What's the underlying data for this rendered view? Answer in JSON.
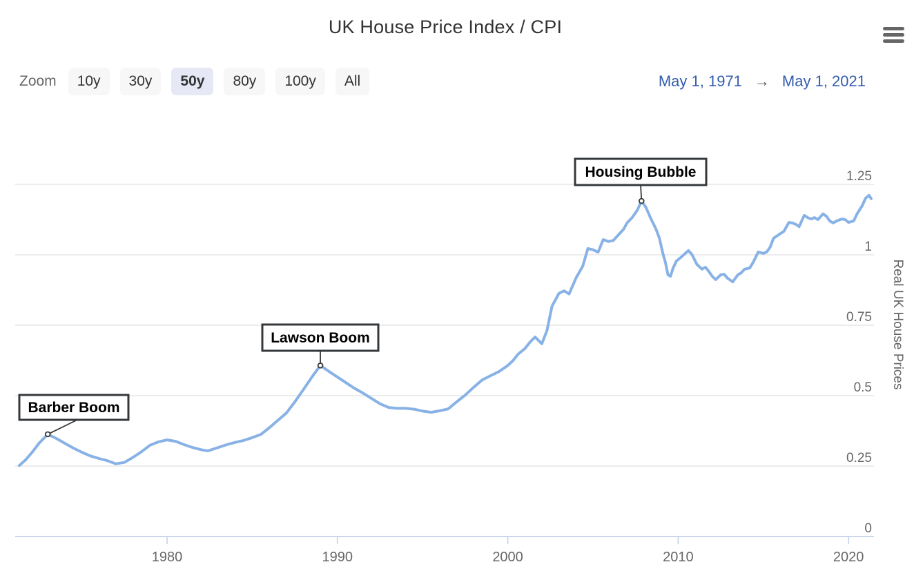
{
  "header": {
    "title": "UK House Price Index / CPI",
    "menu_icon": "hamburger-menu-icon"
  },
  "range_selector": {
    "zoom_label": "Zoom",
    "buttons": [
      {
        "label": "10y",
        "selected": false
      },
      {
        "label": "30y",
        "selected": false
      },
      {
        "label": "50y",
        "selected": true
      },
      {
        "label": "80y",
        "selected": false
      },
      {
        "label": "100y",
        "selected": false
      },
      {
        "label": "All",
        "selected": false
      }
    ],
    "date_from": "May 1, 1971",
    "arrow": "→",
    "date_to": "May 1, 2021"
  },
  "colors": {
    "series_line": "#88b2e6",
    "gridline": "#e6e6e6",
    "axis_line": "#ccd6eb",
    "axis_label": "#666666",
    "title_text": "#333333",
    "date_text": "#335cad",
    "button_bg": "#f7f7f7",
    "button_selected_bg": "#e6e9f5",
    "annotation_border": "#35383b",
    "annotation_text": "#000000",
    "annotation_fill": "#ffffff"
  },
  "chart_data": {
    "type": "line",
    "title": "UK House Price Index / CPI",
    "xlabel": "",
    "ylabel": "Real UK House Prices",
    "xlim": [
      1971.33,
      2021.33
    ],
    "ylim": [
      0,
      1.25
    ],
    "xticks": [
      1980,
      1990,
      2000,
      2010,
      2020
    ],
    "yticks": [
      0,
      0.25,
      0.5,
      0.75,
      1,
      1.25
    ],
    "ytick_labels": [
      "0",
      "0.25",
      "0.5",
      "0.75",
      "1",
      "1.25"
    ],
    "grid": true,
    "legend": false,
    "y_axis_position": "right",
    "annotations": [
      {
        "label": "Barber Boom",
        "year": 1973.0,
        "value": 0.363
      },
      {
        "label": "Lawson Boom",
        "year": 1989.0,
        "value": 0.607
      },
      {
        "label": "Housing Bubble",
        "year": 2007.85,
        "value": 1.191
      }
    ],
    "series": [
      {
        "name": "Real UK House Prices",
        "color": "#88b2e6",
        "points": [
          [
            1971.33,
            0.252
          ],
          [
            1971.7,
            0.272
          ],
          [
            1972.1,
            0.3
          ],
          [
            1972.5,
            0.332
          ],
          [
            1973.0,
            0.363
          ],
          [
            1973.5,
            0.348
          ],
          [
            1974.0,
            0.331
          ],
          [
            1974.5,
            0.314
          ],
          [
            1975.0,
            0.299
          ],
          [
            1975.5,
            0.286
          ],
          [
            1976.0,
            0.277
          ],
          [
            1976.5,
            0.269
          ],
          [
            1977.0,
            0.258
          ],
          [
            1977.5,
            0.263
          ],
          [
            1978.0,
            0.281
          ],
          [
            1978.5,
            0.301
          ],
          [
            1979.0,
            0.324
          ],
          [
            1979.5,
            0.336
          ],
          [
            1980.0,
            0.343
          ],
          [
            1980.5,
            0.338
          ],
          [
            1981.0,
            0.326
          ],
          [
            1981.5,
            0.316
          ],
          [
            1982.0,
            0.308
          ],
          [
            1982.4,
            0.304
          ],
          [
            1983.0,
            0.316
          ],
          [
            1983.5,
            0.326
          ],
          [
            1984.0,
            0.334
          ],
          [
            1984.5,
            0.341
          ],
          [
            1985.0,
            0.351
          ],
          [
            1985.5,
            0.362
          ],
          [
            1986.0,
            0.386
          ],
          [
            1986.5,
            0.412
          ],
          [
            1987.0,
            0.438
          ],
          [
            1987.5,
            0.478
          ],
          [
            1988.0,
            0.521
          ],
          [
            1988.5,
            0.566
          ],
          [
            1989.0,
            0.607
          ],
          [
            1989.5,
            0.586
          ],
          [
            1990.0,
            0.566
          ],
          [
            1990.5,
            0.546
          ],
          [
            1991.0,
            0.526
          ],
          [
            1991.5,
            0.509
          ],
          [
            1992.0,
            0.49
          ],
          [
            1992.5,
            0.471
          ],
          [
            1993.0,
            0.458
          ],
          [
            1993.5,
            0.455
          ],
          [
            1994.0,
            0.455
          ],
          [
            1994.5,
            0.452
          ],
          [
            1995.0,
            0.445
          ],
          [
            1995.5,
            0.441
          ],
          [
            1996.0,
            0.446
          ],
          [
            1996.5,
            0.453
          ],
          [
            1997.0,
            0.478
          ],
          [
            1997.5,
            0.502
          ],
          [
            1998.0,
            0.53
          ],
          [
            1998.5,
            0.556
          ],
          [
            1999.0,
            0.571
          ],
          [
            1999.5,
            0.586
          ],
          [
            2000.0,
            0.607
          ],
          [
            2000.3,
            0.624
          ],
          [
            2000.6,
            0.647
          ],
          [
            2001.0,
            0.667
          ],
          [
            2001.3,
            0.69
          ],
          [
            2001.6,
            0.708
          ],
          [
            2002.0,
            0.684
          ],
          [
            2002.3,
            0.731
          ],
          [
            2002.6,
            0.818
          ],
          [
            2003.0,
            0.863
          ],
          [
            2003.3,
            0.872
          ],
          [
            2003.6,
            0.861
          ],
          [
            2004.0,
            0.917
          ],
          [
            2004.4,
            0.96
          ],
          [
            2004.7,
            1.022
          ],
          [
            2005.0,
            1.018
          ],
          [
            2005.3,
            1.009
          ],
          [
            2005.6,
            1.054
          ],
          [
            2005.9,
            1.047
          ],
          [
            2006.2,
            1.051
          ],
          [
            2006.5,
            1.071
          ],
          [
            2006.8,
            1.091
          ],
          [
            2007.0,
            1.113
          ],
          [
            2007.3,
            1.132
          ],
          [
            2007.6,
            1.158
          ],
          [
            2007.85,
            1.191
          ],
          [
            2008.1,
            1.169
          ],
          [
            2008.4,
            1.128
          ],
          [
            2008.7,
            1.091
          ],
          [
            2008.9,
            1.059
          ],
          [
            2009.1,
            1.005
          ],
          [
            2009.25,
            0.973
          ],
          [
            2009.4,
            0.929
          ],
          [
            2009.55,
            0.924
          ],
          [
            2009.7,
            0.953
          ],
          [
            2009.9,
            0.978
          ],
          [
            2010.2,
            0.993
          ],
          [
            2010.6,
            1.015
          ],
          [
            2010.8,
            1.002
          ],
          [
            2011.1,
            0.966
          ],
          [
            2011.4,
            0.949
          ],
          [
            2011.6,
            0.956
          ],
          [
            2011.8,
            0.941
          ],
          [
            2012.0,
            0.924
          ],
          [
            2012.2,
            0.912
          ],
          [
            2012.5,
            0.929
          ],
          [
            2012.7,
            0.931
          ],
          [
            2012.9,
            0.917
          ],
          [
            2013.2,
            0.904
          ],
          [
            2013.5,
            0.929
          ],
          [
            2013.7,
            0.936
          ],
          [
            2013.9,
            0.949
          ],
          [
            2014.2,
            0.953
          ],
          [
            2014.4,
            0.973
          ],
          [
            2014.7,
            1.01
          ],
          [
            2015.0,
            1.005
          ],
          [
            2015.2,
            1.01
          ],
          [
            2015.4,
            1.027
          ],
          [
            2015.6,
            1.059
          ],
          [
            2015.9,
            1.071
          ],
          [
            2016.2,
            1.083
          ],
          [
            2016.5,
            1.115
          ],
          [
            2016.7,
            1.113
          ],
          [
            2016.9,
            1.108
          ],
          [
            2017.1,
            1.1
          ],
          [
            2017.4,
            1.14
          ],
          [
            2017.6,
            1.132
          ],
          [
            2017.8,
            1.127
          ],
          [
            2018.0,
            1.132
          ],
          [
            2018.2,
            1.125
          ],
          [
            2018.5,
            1.145
          ],
          [
            2018.7,
            1.137
          ],
          [
            2018.9,
            1.12
          ],
          [
            2019.1,
            1.113
          ],
          [
            2019.3,
            1.12
          ],
          [
            2019.6,
            1.127
          ],
          [
            2019.8,
            1.125
          ],
          [
            2020.0,
            1.115
          ],
          [
            2020.3,
            1.12
          ],
          [
            2020.5,
            1.145
          ],
          [
            2020.8,
            1.174
          ],
          [
            2021.0,
            1.201
          ],
          [
            2021.2,
            1.211
          ],
          [
            2021.33,
            1.199
          ]
        ]
      }
    ]
  }
}
